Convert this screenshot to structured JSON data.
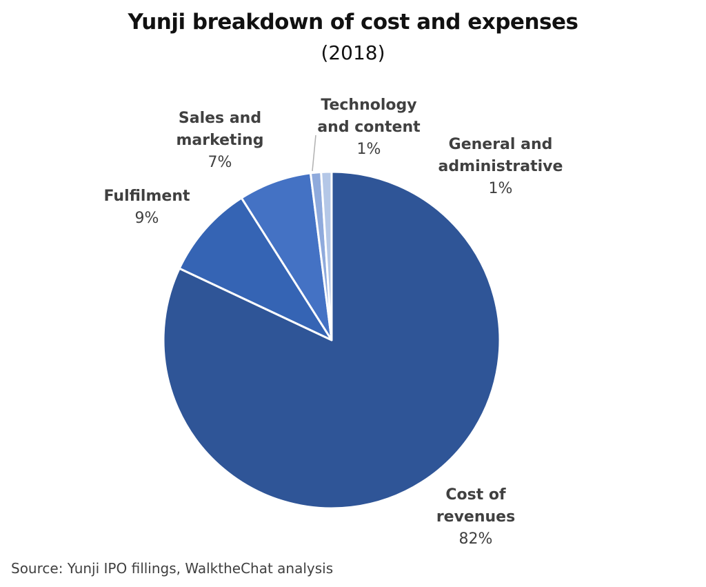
{
  "chart_data": {
    "type": "pie",
    "title": "Yunji breakdown of cost and expenses",
    "subtitle": "(2018)",
    "slices": [
      {
        "label": "Cost of revenues",
        "label_lines": [
          "Cost of",
          "revenues"
        ],
        "value": 82,
        "value_label": "82%",
        "color": "#2F5597"
      },
      {
        "label": "Fulfilment",
        "label_lines": [
          "Fulfilment"
        ],
        "value": 9,
        "value_label": "9%",
        "color": "#3564B4"
      },
      {
        "label": "Sales and marketing",
        "label_lines": [
          "Sales and",
          "marketing"
        ],
        "value": 7,
        "value_label": "7%",
        "color": "#4472C4"
      },
      {
        "label": "Technology and content",
        "label_lines": [
          "Technology",
          "and content"
        ],
        "value": 1,
        "value_label": "1%",
        "color": "#8FAADC"
      },
      {
        "label": "General and administrative",
        "label_lines": [
          "General and",
          "administrative"
        ],
        "value": 1,
        "value_label": "1%",
        "color": "#B4C7E7"
      }
    ]
  },
  "source": "Source: Yunji IPO fillings, WalktheChat analysis"
}
